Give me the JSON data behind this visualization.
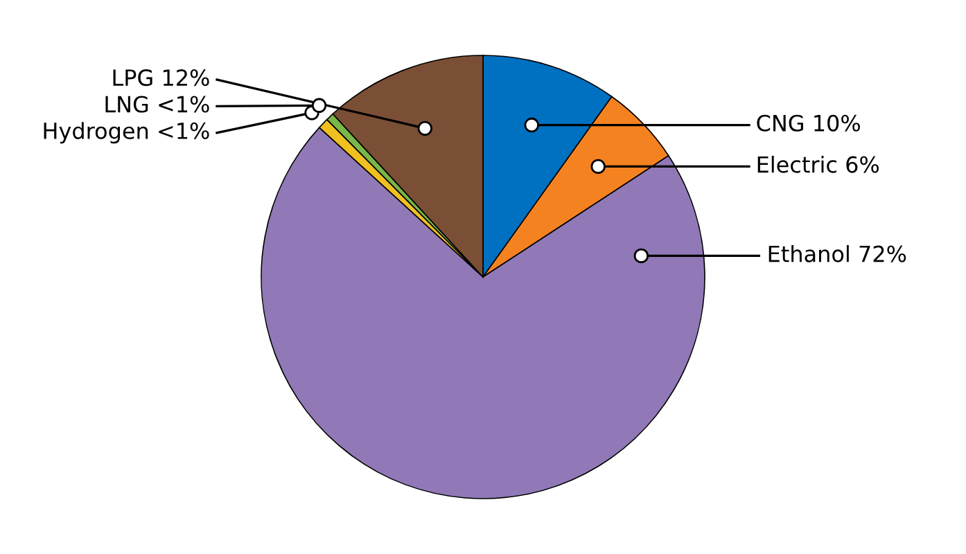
{
  "chart_data": {
    "type": "pie",
    "categories": [
      "CNG",
      "Electric",
      "Ethanol",
      "Hydrogen",
      "LNG",
      "LPG"
    ],
    "values": [
      10,
      6,
      72,
      0.8,
      0.6,
      12
    ],
    "value_labels": [
      "10%",
      "6%",
      "72%",
      "<1%",
      "<1%",
      "12%"
    ],
    "colors": [
      "#0070c0",
      "#f58220",
      "#9079b6",
      "#f0c020",
      "#7ab648",
      "#7b4f35"
    ],
    "legend": false
  }
}
